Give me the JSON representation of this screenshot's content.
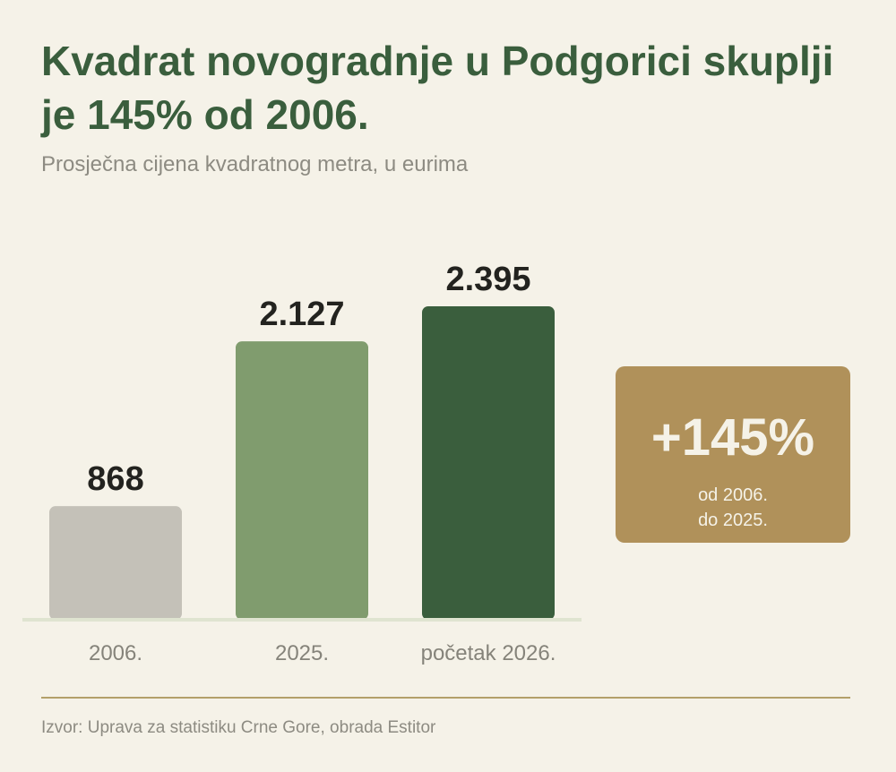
{
  "chart_data": {
    "type": "bar",
    "title": "Kvadrat novogradnje u Podgorici skuplji je 145% od 2006.",
    "subtitle": "Prosječna cijena kvadratnog metra, u eurima",
    "categories": [
      "2006.",
      "2025.",
      "početak 2026."
    ],
    "values": [
      868,
      2127,
      2395
    ],
    "value_labels": [
      "868",
      "2.127",
      "2.395"
    ],
    "colors": [
      "#c4c1b8",
      "#809c6e",
      "#3a5e3d"
    ],
    "ylim": [
      0,
      2395
    ],
    "grid": false,
    "legend": "none"
  },
  "badge": {
    "value": "+145%",
    "note_line1": "od 2006.",
    "note_line2": "do 2025.",
    "color": "#b0915a"
  },
  "source": "Izvor: Uprava za statistiku Crne Gore, obrada Estitor",
  "colors": {
    "background": "#f5f2e8",
    "title": "#3a5e3d",
    "baseline": "#dfe4d0",
    "divider": "#b3a06a"
  }
}
